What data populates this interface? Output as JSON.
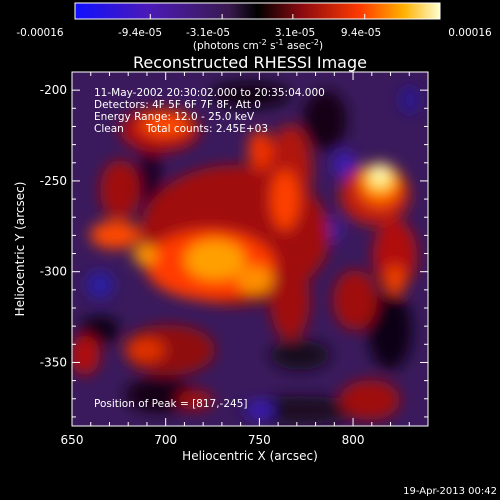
{
  "chart_data": {
    "type": "heatmap",
    "title": "Reconstructed RHESSI Image",
    "xlabel": "Heliocentric X (arcsec)",
    "ylabel": "Heliocentric Y (arcsec)",
    "xlim": [
      650,
      840
    ],
    "ylim": [
      -385,
      -190
    ],
    "x_ticks": [
      650,
      700,
      750,
      800
    ],
    "y_ticks": [
      -200,
      -250,
      -300,
      -350
    ],
    "colorbar": {
      "tick_labels": [
        "-0.00016",
        "-9.4e-05",
        "-3.1e-05",
        "3.1e-05",
        "9.4e-05",
        "0.00016"
      ],
      "tick_values": [
        -0.00016,
        -9.4e-05,
        -3.1e-05,
        3.1e-05,
        9.4e-05,
        0.00016
      ],
      "range": [
        -0.00016,
        0.00016
      ],
      "units_text": "(photons cm",
      "units_sup1": "-2",
      "units_mid": " s",
      "units_sup2": "-1",
      "units_mid2": " asec",
      "units_sup3": "-2",
      "units_end": ")"
    },
    "annotations": {
      "time_range": "11-May-2002 20:30:02.000 to 20:35:04.000",
      "detectors": "Detectors: 4F 5F 6F 7F 8F, Att 0",
      "energy": "Energy Range: 12.0 - 25.0 keV",
      "method": "Clean",
      "counts": "Total counts: 2.45E+03",
      "peak": "Position of Peak = [817,-245]"
    },
    "peak_position": [
      817,
      -245
    ],
    "date_stamp": "19-Apr-2013 00:42",
    "colors": {
      "background": "#000000",
      "foreground": "#ffffff"
    }
  }
}
